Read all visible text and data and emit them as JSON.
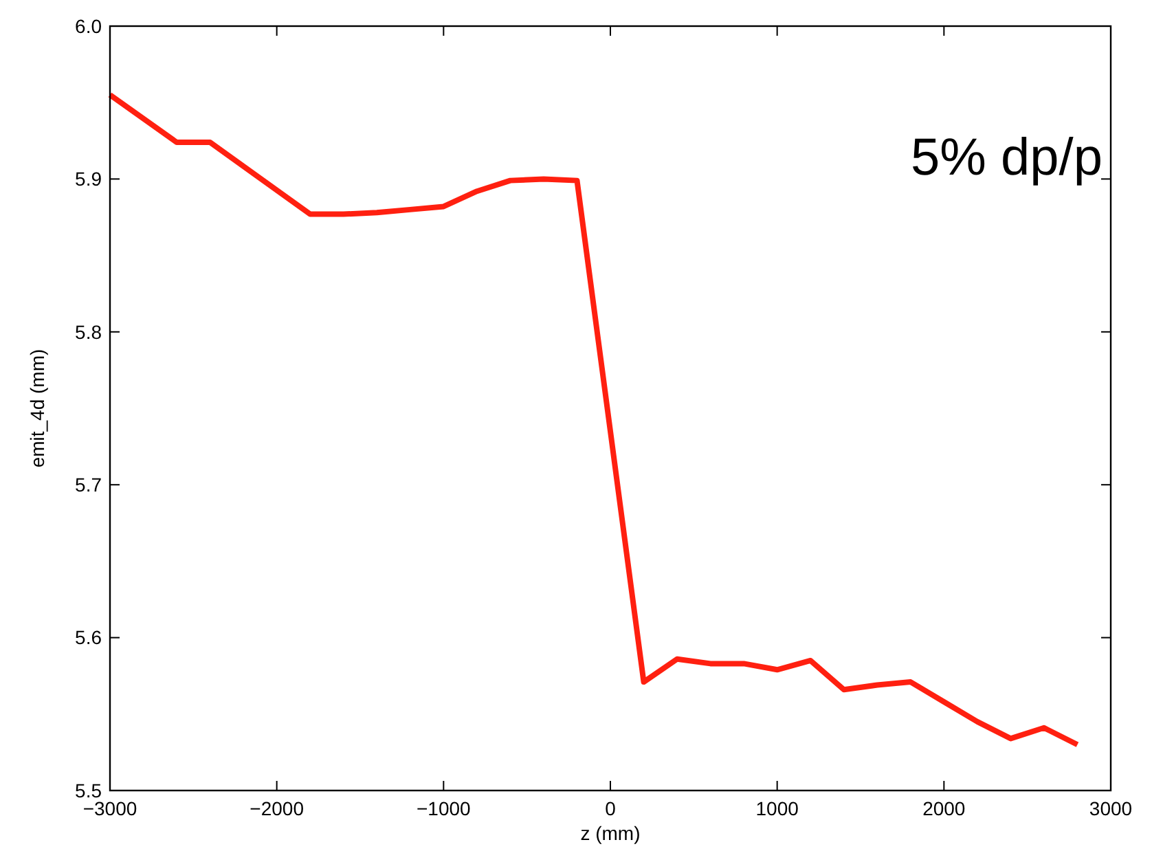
{
  "chart_data": {
    "type": "line",
    "xlabel": "z (mm)",
    "ylabel": "emit_4d (mm)",
    "annotations": [
      "5% dp/p"
    ],
    "x": [
      -3000,
      -2600,
      -2400,
      -1800,
      -1600,
      -1400,
      -1200,
      -1000,
      -800,
      -600,
      -400,
      -200,
      200,
      400,
      600,
      800,
      1000,
      1200,
      1400,
      1600,
      1800,
      2000,
      2200,
      2400,
      2600,
      2800
    ],
    "series": [
      {
        "color": "#ff2010",
        "values": [
          5.955,
          5.924,
          5.924,
          5.877,
          5.877,
          5.878,
          5.88,
          5.882,
          5.892,
          5.899,
          5.9,
          5.899,
          5.571,
          5.586,
          5.583,
          5.583,
          5.579,
          5.585,
          5.566,
          5.569,
          5.571,
          5.558,
          5.545,
          5.534,
          5.541,
          5.53
        ]
      }
    ],
    "xlim": [
      -3000,
      3000
    ],
    "xticks": [
      {
        "value": -3000,
        "label": "−3000"
      },
      {
        "value": -2000,
        "label": "−2000"
      },
      {
        "value": -1000,
        "label": "−1000"
      },
      0,
      1000,
      2000,
      3000
    ],
    "ylim": [
      5.5,
      6.0
    ],
    "yticks": [
      5.5,
      5.6,
      5.7,
      5.8,
      5.9,
      {
        "value": 6.0,
        "label": "6.0"
      }
    ],
    "grid": false,
    "marker": "none",
    "line_style": "solid"
  }
}
